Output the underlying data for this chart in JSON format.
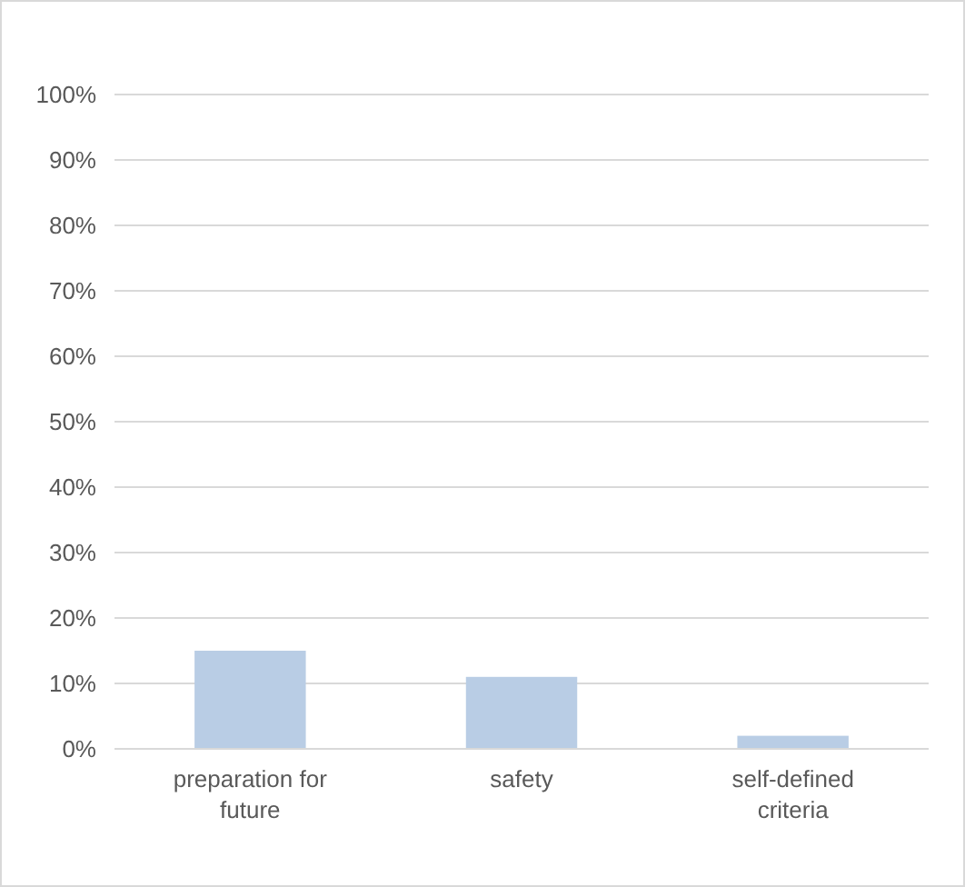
{
  "chart_data": {
    "type": "bar",
    "categories": [
      "preparation for future",
      "safety",
      "self-defined criteria"
    ],
    "values": [
      15,
      11,
      2
    ],
    "color": "#b9cde5",
    "ylim": [
      0,
      100
    ],
    "yticks": [
      {
        "value": 0,
        "label": "0%"
      },
      {
        "value": 10,
        "label": "10%"
      },
      {
        "value": 20,
        "label": "20%"
      },
      {
        "value": 30,
        "label": "30%"
      },
      {
        "value": 40,
        "label": "40%"
      },
      {
        "value": 50,
        "label": "50%"
      },
      {
        "value": 60,
        "label": "60%"
      },
      {
        "value": 70,
        "label": "70%"
      },
      {
        "value": 80,
        "label": "80%"
      },
      {
        "value": 90,
        "label": "90%"
      },
      {
        "value": 100,
        "label": "100%"
      }
    ],
    "grid": "y"
  }
}
